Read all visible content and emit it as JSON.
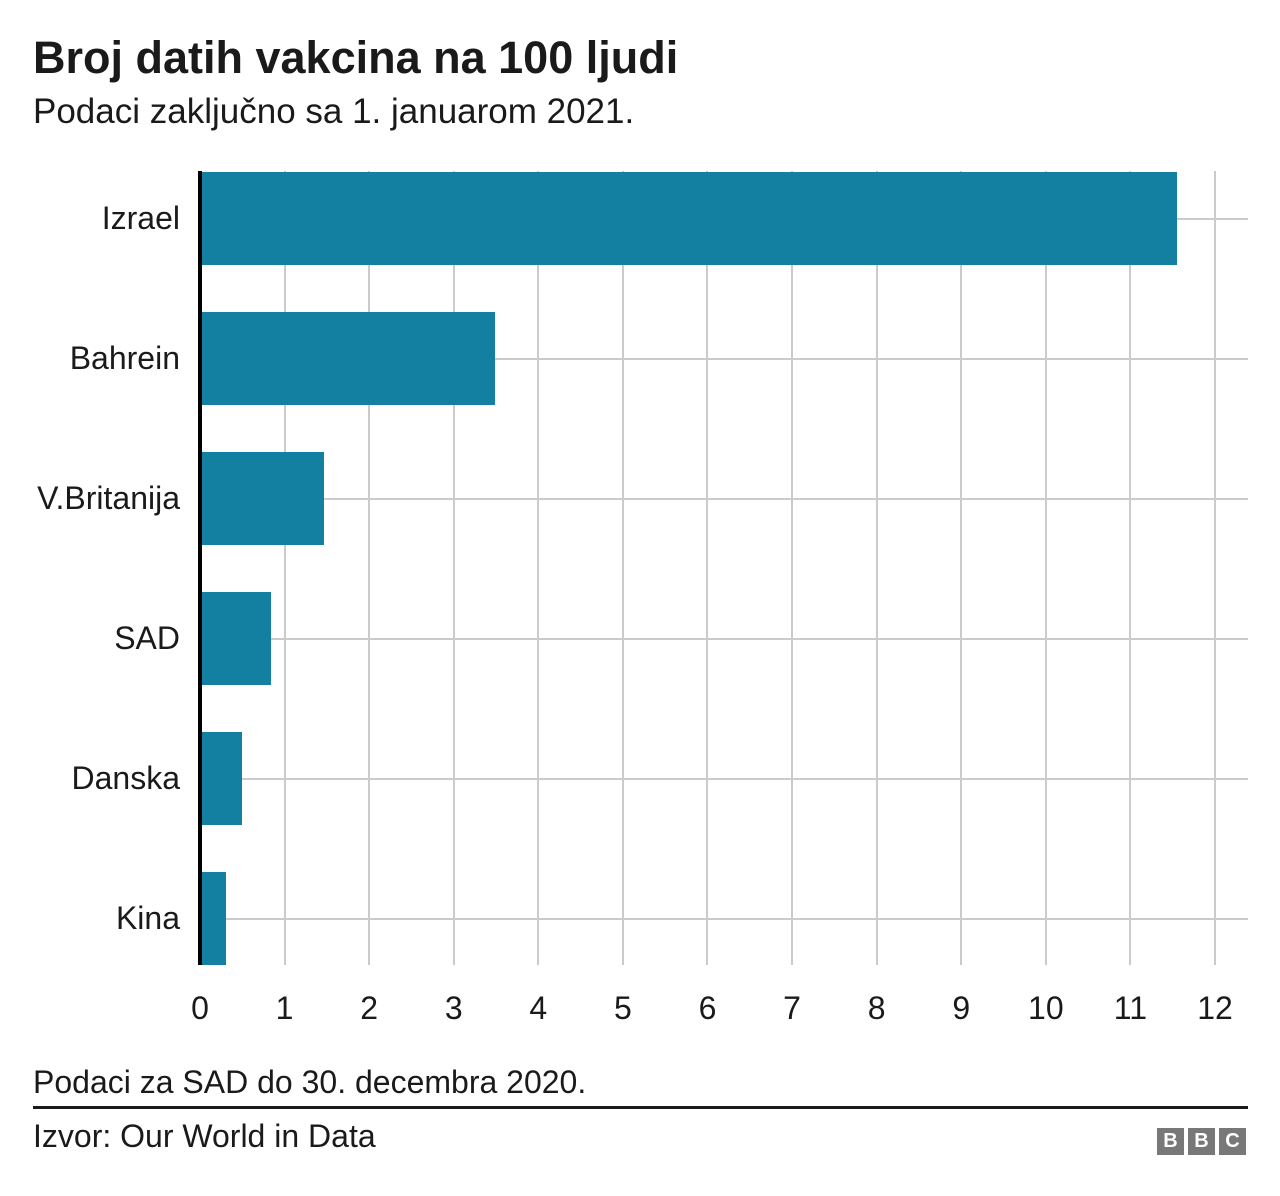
{
  "chart": {
    "title": "Broj datih vakcina na 100 ljudi",
    "subtitle": "Podaci zaključno sa 1. januarom 2021."
  },
  "chart_data": {
    "type": "bar",
    "orientation": "horizontal",
    "title": "Broj datih vakcina na 100 ljudi",
    "subtitle": "Podaci zaključno sa 1. januarom 2021.",
    "categories": [
      "Izrael",
      "Bahrein",
      "V.Britanija",
      "SAD",
      "Danska",
      "Kina"
    ],
    "values": [
      11.55,
      3.49,
      1.47,
      0.84,
      0.5,
      0.31
    ],
    "xlabel": "",
    "ylabel": "",
    "xlim": [
      0,
      12.4
    ],
    "x_ticks": [
      0,
      1,
      2,
      3,
      4,
      5,
      6,
      7,
      8,
      9,
      10,
      11,
      12
    ],
    "grid": "vertical lines at each integer tick; horizontal grey line through each category center; bars drawn on top",
    "legend": "none",
    "colors": {
      "bar": "#1380A1",
      "gridline": "#CBCBCB",
      "axis": "#000000",
      "text": "#1A1A1A"
    }
  },
  "footer": {
    "footnote": "Podaci za SAD do 30. decembra 2020.",
    "source": "Izvor: Our World in Data"
  },
  "branding": {
    "name": "BBC",
    "letters": [
      "B",
      "B",
      "C"
    ],
    "block_color": "#787878",
    "letter_color": "#FFFFFF"
  }
}
